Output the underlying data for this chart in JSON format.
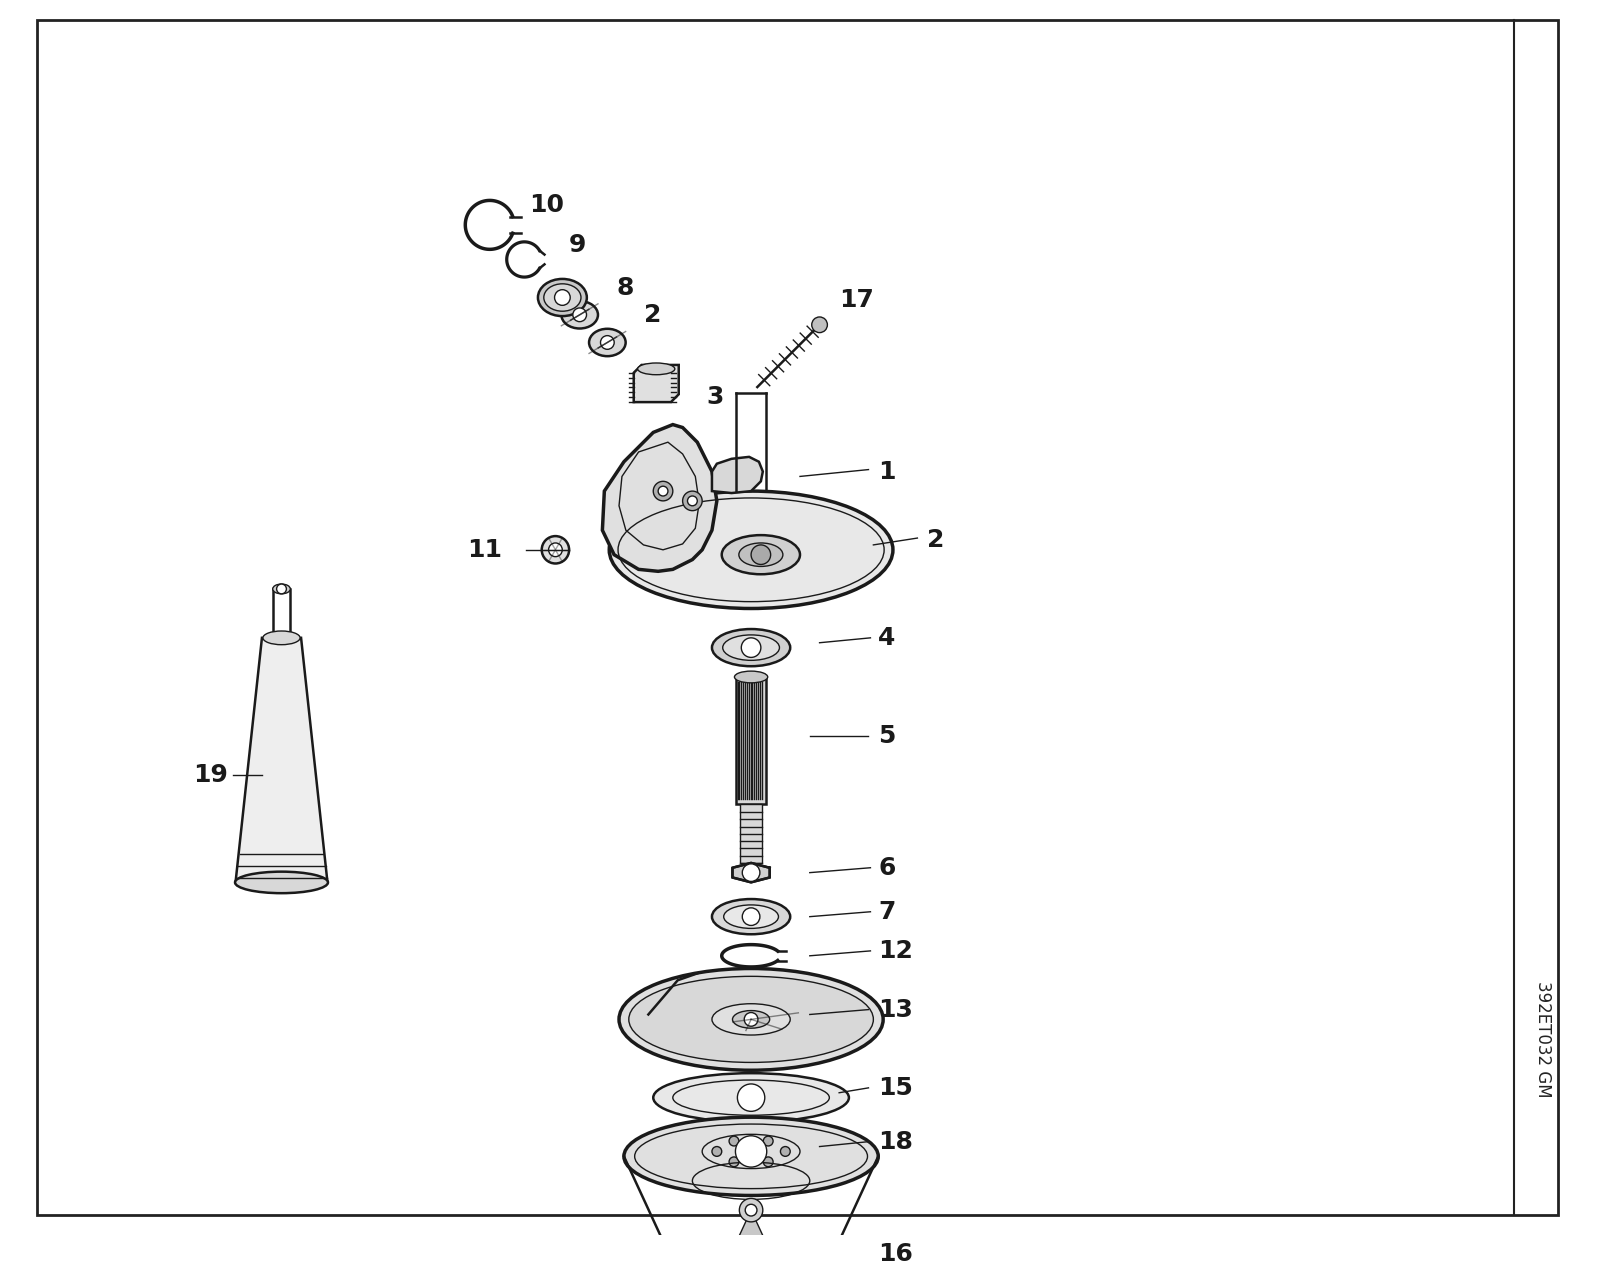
{
  "background_color": "#ffffff",
  "line_color": "#1a1a1a",
  "text_color": "#1a1a1a",
  "watermark_text": "392ET032 GM",
  "fig_width": 16.0,
  "fig_height": 12.62,
  "dpi": 100
}
